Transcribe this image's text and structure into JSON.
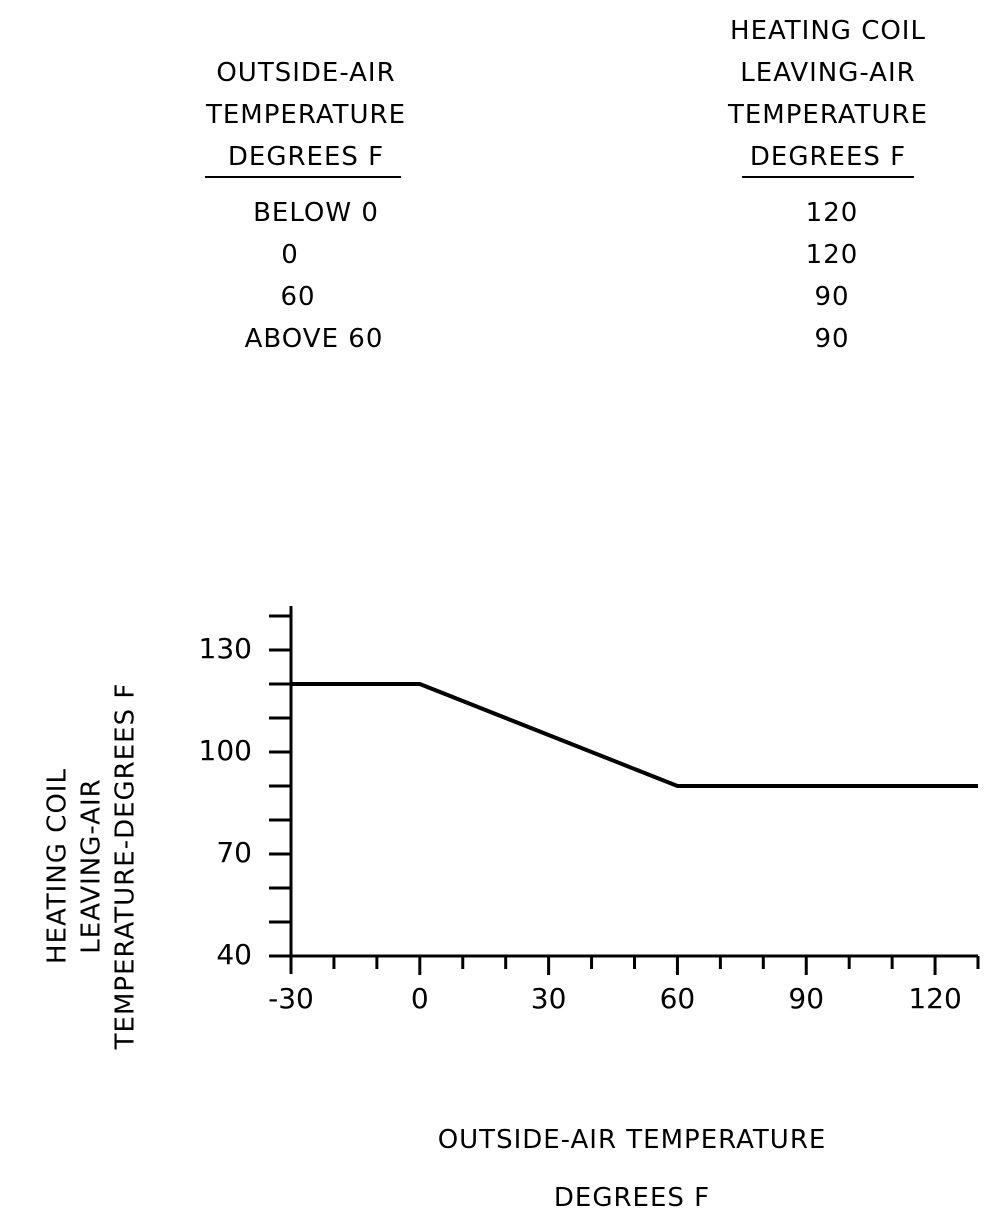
{
  "table": {
    "left_header": [
      "OUTSIDE-AIR",
      "TEMPERATURE",
      "DEGREES F"
    ],
    "right_header": [
      "HEATING COIL",
      "LEAVING-AIR",
      "TEMPERATURE",
      "DEGREES F"
    ],
    "rows": [
      {
        "oat": "BELOW 0",
        "lat": "120"
      },
      {
        "oat": "0",
        "lat": "120"
      },
      {
        "oat": "60",
        "lat": "90"
      },
      {
        "oat": "ABOVE 60",
        "lat": "90"
      }
    ]
  },
  "chart_data": {
    "type": "line",
    "xlabel": [
      "OUTSIDE-AIR TEMPERATURE",
      "DEGREES F"
    ],
    "ylabel": [
      "HEATING COIL",
      "LEAVING-AIR",
      "TEMPERATURE-DEGREES F"
    ],
    "xlim": [
      -30,
      130
    ],
    "ylim": [
      40,
      140
    ],
    "x_ticks": [
      -30,
      0,
      30,
      60,
      90,
      120
    ],
    "x_tick_labels": [
      "-30",
      "0",
      "30",
      "60",
      "90",
      "120"
    ],
    "y_ticks": [
      40,
      70,
      100,
      130
    ],
    "y_tick_labels": [
      "40",
      "70",
      "100",
      "130"
    ],
    "x_minor_step": 10,
    "y_minor_step": 10,
    "grid": false,
    "series": [
      {
        "x": [
          -30,
          0,
          60,
          130
        ],
        "y": [
          120,
          120,
          90,
          90
        ]
      }
    ]
  }
}
